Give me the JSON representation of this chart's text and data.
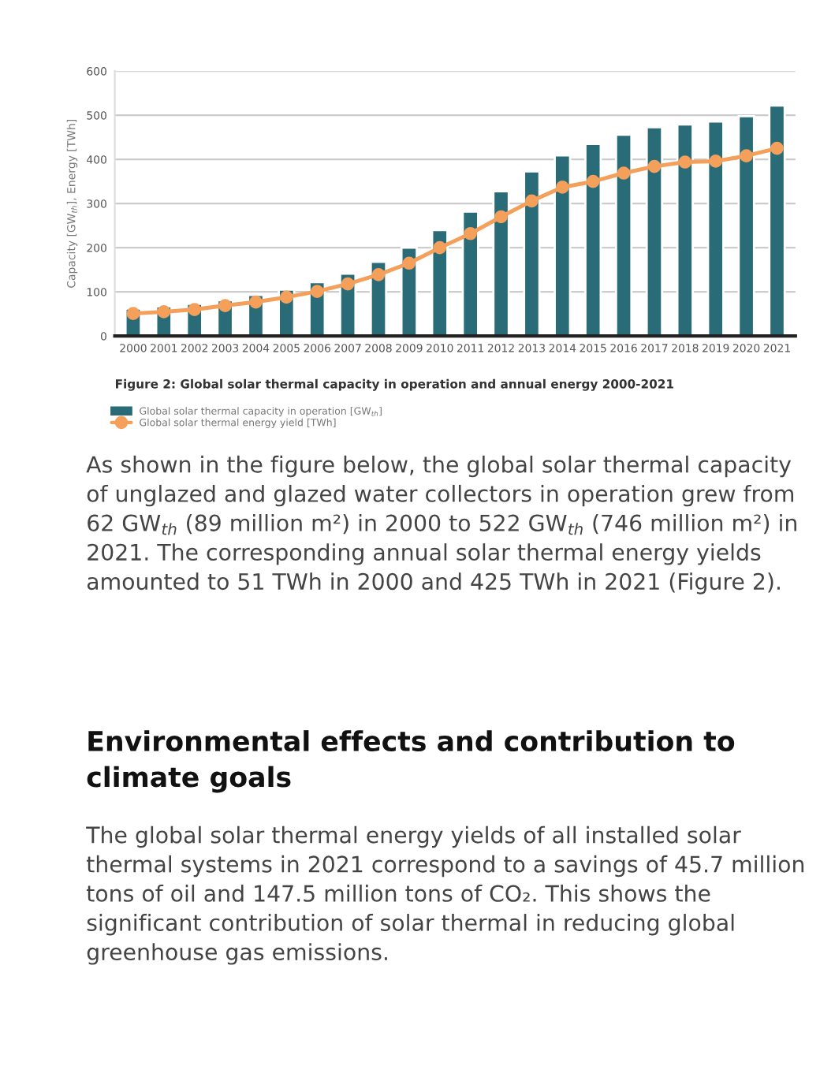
{
  "chart_data": {
    "type": "bar",
    "categories": [
      "2000",
      "2001",
      "2002",
      "2003",
      "2004",
      "2005",
      "2006",
      "2007",
      "2008",
      "2009",
      "2010",
      "2011",
      "2012",
      "2013",
      "2014",
      "2015",
      "2016",
      "2017",
      "2018",
      "2019",
      "2020",
      "2021"
    ],
    "series": [
      {
        "name": "Global solar thermal capacity in operation [GW$_{th}$]",
        "color": "#2a6b78",
        "values": [
          62,
          67,
          73,
          81,
          93,
          105,
          122,
          141,
          168,
          200,
          240,
          282,
          328,
          373,
          409,
          435,
          456,
          473,
          479,
          486,
          498,
          522
        ]
      },
      {
        "name": "Global solar thermal energy yield [TWh]",
        "type": "line",
        "color": "#f5a05a",
        "marker": "circle",
        "values": [
          51,
          55,
          60,
          69,
          77,
          88,
          101,
          118,
          139,
          165,
          200,
          232,
          270,
          306,
          337,
          350,
          369,
          384,
          394,
          396,
          408,
          425
        ]
      }
    ],
    "ylabel": "Capacity [GW$_{th}$], Energy [TWh]",
    "ylim": [
      0,
      600
    ],
    "yticks": [
      0,
      100,
      200,
      300,
      400,
      500,
      600
    ],
    "grid": "y",
    "legend": "bottom",
    "annotations": [
      "Figure 2: Global solar thermal capacity in operation and annual energy 2000-2021",
      "As shown in the figure below, the global solar thermal capacity of unglazed and glazed water collectors in operation grew from 62 GW$_{th}$ (89 million m²) in 2000 to 522 GW$_{th}$ (746 million m²) in 2021. The corresponding annual solar thermal energy yields amounted to 51 TWh in 2000 and 425 TWh in 2021 (Figure 2).",
      "Environmental effects and contribution to climate goals",
      "The global solar thermal energy yields of all installed solar thermal systems in 2021 correspond to a savings of 45.7 million tons of oil and 147.5 million tons of CO₂. This shows the significant contribution of solar thermal in reducing global greenhouse gas emissions."
    ]
  }
}
